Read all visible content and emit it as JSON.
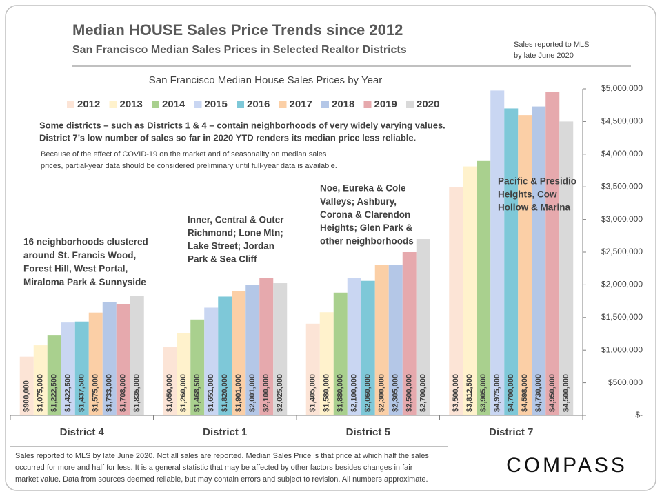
{
  "header": {
    "title": "Median HOUSE Sales Price Trends since 2012",
    "subtitle": "San Francisco Median Sales Prices in Selected Realtor Districts",
    "note": [
      "Sales reported to MLS",
      "by late June 2020"
    ]
  },
  "chart_data": {
    "type": "bar",
    "title": "San Francisco Median House Sales Prices by Year",
    "notes": [
      "Some districts – such as Districts 1 & 4 – contain neighborhoods of very widely varying values.",
      "District 7’s low number of sales so far in 2020 YTD renders its median price less reliable."
    ],
    "small_notes": [
      "Because of the effect of COVID-19 on the market and of seasonality on median sales",
      "prices, partial-year data should be considered preliminary until full-year data is available."
    ],
    "categories": [
      "District 4",
      "District 1",
      "District 5",
      "District 7"
    ],
    "annotations": [
      [
        "16 neighborhoods clustered",
        "around St. Francis Wood,",
        "Forest Hill, West Portal,",
        "Miraloma Park & Sunnyside"
      ],
      [
        "Inner, Central & Outer",
        "Richmond; Lone Mtn;",
        "Lake Street; Jordan",
        "Park & Sea Cliff"
      ],
      [
        "Noe, Eureka & Cole",
        "Valleys; Ashbury,",
        "Corona & Clarendon",
        "Heights; Glen Park &",
        "other neighborhoods"
      ],
      [
        "Pacific & Presidio",
        "Heights, Cow",
        "Hollow & Marina"
      ]
    ],
    "series": [
      {
        "name": "2012",
        "color": "#fce4d6",
        "values": [
          900000,
          1050000,
          1405000,
          3500000
        ],
        "value_labels": [
          "$900,000",
          "$1,050,000",
          "$1,405,000",
          "$3,500,000"
        ]
      },
      {
        "name": "2013",
        "color": "#fff2cc",
        "values": [
          1075000,
          1260000,
          1580000,
          3812500
        ],
        "value_labels": [
          "$1,075,000",
          "$1,260,000",
          "$1,580,000",
          "$3,812,500"
        ]
      },
      {
        "name": "2014",
        "color": "#a9d08e",
        "values": [
          1222500,
          1468500,
          1880000,
          3905000
        ],
        "value_labels": [
          "$1,222,500",
          "$1,468,500",
          "$1,880,000",
          "$3,905,000"
        ]
      },
      {
        "name": "2015",
        "color": "#c9d6f2",
        "values": [
          1422500,
          1651000,
          2100000,
          4975000
        ],
        "value_labels": [
          "$1,422,500",
          "$1,651,000",
          "$2,100,000",
          "$4,975,000"
        ]
      },
      {
        "name": "2016",
        "color": "#7ec8d8",
        "values": [
          1437500,
          1820000,
          2060000,
          4700000
        ],
        "value_labels": [
          "$1,437,500",
          "$1,820,000",
          "$2,060,000",
          "$4,700,000"
        ]
      },
      {
        "name": "2017",
        "color": "#fbcfa6",
        "values": [
          1575000,
          1901000,
          2300000,
          4598000
        ],
        "value_labels": [
          "$1,575,000",
          "$1,901,000",
          "$2,300,000",
          "$4,598,000"
        ]
      },
      {
        "name": "2018",
        "color": "#b4c7e7",
        "values": [
          1733000,
          2001000,
          2305000,
          4730000
        ],
        "value_labels": [
          "$1,733,000",
          "$2,001,000",
          "$2,305,000",
          "$4,730,000"
        ]
      },
      {
        "name": "2019",
        "color": "#e6a9ad",
        "values": [
          1708000,
          2100000,
          2500000,
          4950000
        ],
        "value_labels": [
          "$1,708,000",
          "$2,100,000",
          "$2,500,000",
          "$4,950,000"
        ]
      },
      {
        "name": "2020",
        "color": "#d9d9d9",
        "values": [
          1835000,
          2025000,
          2700000,
          4500000
        ],
        "value_labels": [
          "$1,835,000",
          "$2,025,000",
          "$2,700,000",
          "$4,500,000"
        ]
      }
    ],
    "ylim": [
      0,
      5000000
    ],
    "yticks": [
      {
        "value": 0,
        "label": "$-"
      },
      {
        "value": 500000,
        "label": "$500,000"
      },
      {
        "value": 1000000,
        "label": "$1,000,000"
      },
      {
        "value": 1500000,
        "label": "$1,500,000"
      },
      {
        "value": 2000000,
        "label": "$2,000,000"
      },
      {
        "value": 2500000,
        "label": "$2,500,000"
      },
      {
        "value": 3000000,
        "label": "$3,000,000"
      },
      {
        "value": 3500000,
        "label": "$3,500,000"
      },
      {
        "value": 4000000,
        "label": "$4,000,000"
      },
      {
        "value": 4500000,
        "label": "$4,500,000"
      },
      {
        "value": 5000000,
        "label": "$5,000,000"
      }
    ],
    "grid": false
  },
  "footer": [
    "Sales reported to MLS by late June 2020. Not all sales are reported. Median Sales Price is that price at which half the sales",
    "occurred for more and half for less. It is a general statistic that may be affected by other factors besides changes in fair",
    "market value. Data from sources deemed reliable, but may contain errors and subject to revision.  All numbers approximate."
  ],
  "logo": "COMPASS"
}
